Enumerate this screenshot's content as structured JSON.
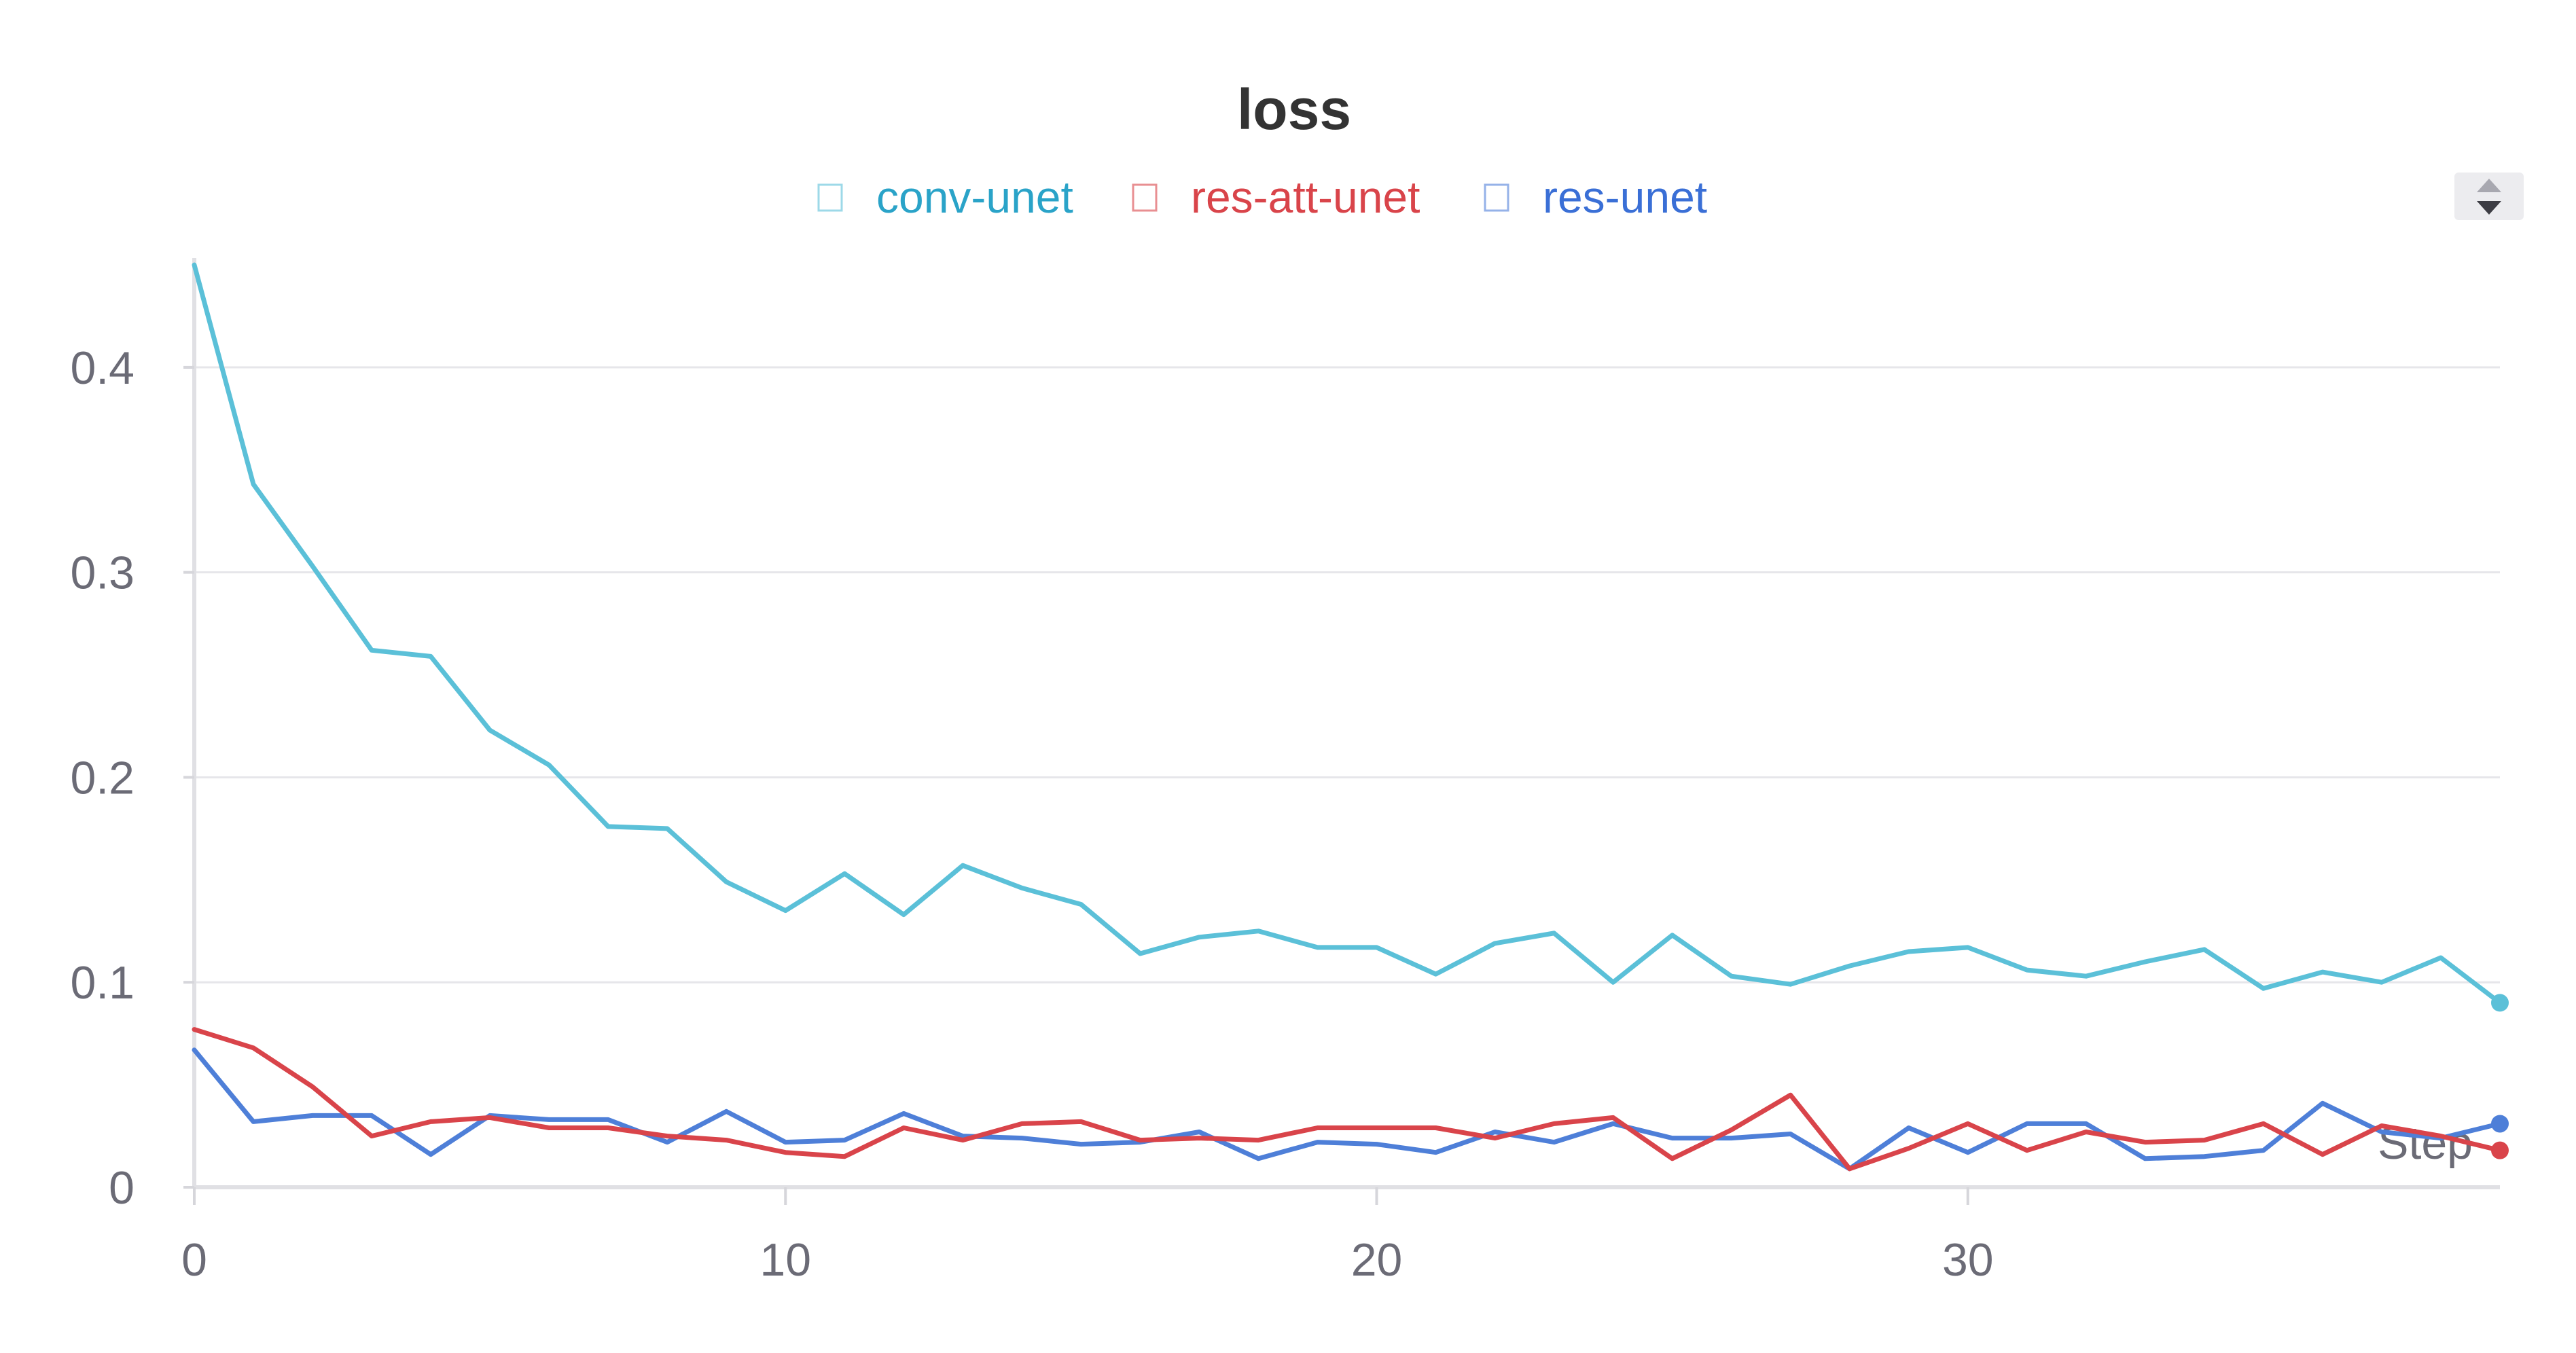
{
  "chart_data": {
    "type": "line",
    "title": "loss",
    "xlabel": "Step",
    "ylabel": "",
    "xlim": [
      0,
      39
    ],
    "ylim": [
      0,
      0.45
    ],
    "x_ticks": [
      0,
      10,
      20,
      30
    ],
    "x_tick_labels": [
      "0",
      "10",
      "20",
      "30"
    ],
    "y_ticks": [
      0,
      0.1,
      0.2,
      0.3,
      0.4
    ],
    "y_tick_labels": [
      "0",
      "0.1",
      "0.2",
      "0.3",
      "0.4"
    ],
    "grid": true,
    "legend_position": "top-center",
    "x": [
      0,
      1,
      2,
      3,
      4,
      5,
      6,
      7,
      8,
      9,
      10,
      11,
      12,
      13,
      14,
      15,
      16,
      17,
      18,
      19,
      20,
      21,
      22,
      23,
      24,
      25,
      26,
      27,
      28,
      29,
      30,
      31,
      32,
      33,
      34,
      35,
      36,
      37,
      38,
      39
    ],
    "series": [
      {
        "name": "conv-unet",
        "color": "#5bc0d8",
        "legend_text_color": "#2aa3c8",
        "values": [
          0.45,
          0.343,
          0.303,
          0.262,
          0.259,
          0.223,
          0.206,
          0.176,
          0.175,
          0.149,
          0.135,
          0.153,
          0.133,
          0.157,
          0.146,
          0.138,
          0.114,
          0.122,
          0.125,
          0.117,
          0.117,
          0.104,
          0.119,
          0.124,
          0.1,
          0.123,
          0.103,
          0.099,
          0.108,
          0.115,
          0.117,
          0.106,
          0.103,
          0.11,
          0.116,
          0.097,
          0.105,
          0.1,
          0.112,
          0.09
        ]
      },
      {
        "name": "res-att-unet",
        "color": "#d9444a",
        "legend_text_color": "#d9444a",
        "values": [
          0.077,
          0.068,
          0.049,
          0.025,
          0.032,
          0.034,
          0.029,
          0.029,
          0.025,
          0.023,
          0.017,
          0.015,
          0.029,
          0.023,
          0.031,
          0.032,
          0.023,
          0.024,
          0.023,
          0.029,
          0.029,
          0.029,
          0.024,
          0.031,
          0.034,
          0.014,
          0.028,
          0.045,
          0.009,
          0.019,
          0.031,
          0.018,
          0.027,
          0.022,
          0.023,
          0.031,
          0.016,
          0.03,
          0.025,
          0.018
        ]
      },
      {
        "name": "res-unet",
        "color": "#4e7fd8",
        "legend_text_color": "#3a6fd6",
        "values": [
          0.067,
          0.032,
          0.035,
          0.035,
          0.016,
          0.035,
          0.033,
          0.033,
          0.022,
          0.037,
          0.022,
          0.023,
          0.036,
          0.025,
          0.024,
          0.021,
          0.022,
          0.027,
          0.014,
          0.022,
          0.021,
          0.017,
          0.027,
          0.022,
          0.031,
          0.024,
          0.024,
          0.026,
          0.009,
          0.029,
          0.017,
          0.031,
          0.031,
          0.014,
          0.015,
          0.018,
          0.041,
          0.027,
          0.024,
          0.031
        ]
      }
    ]
  },
  "controls": {
    "sort_icon": "sort-arrows-icon"
  }
}
